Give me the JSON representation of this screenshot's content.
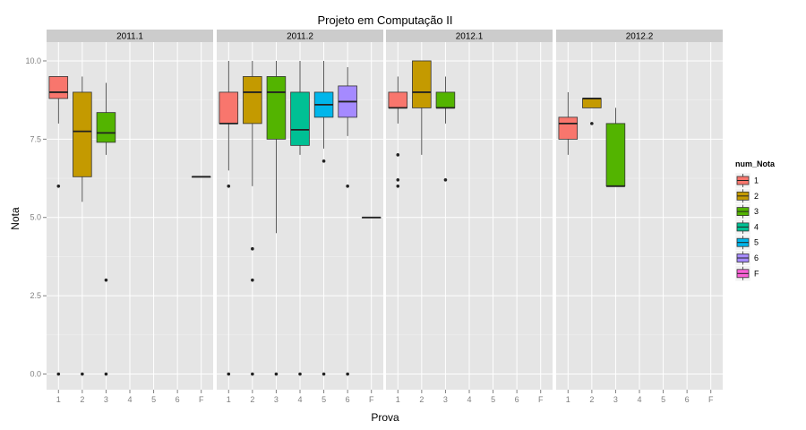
{
  "chart_data": {
    "type": "boxplot",
    "title": "Projeto em Computação II",
    "xlabel": "Prova",
    "ylabel": "Nota",
    "ylim": [
      -0.5,
      10.6
    ],
    "yticks": [
      0.0,
      2.5,
      5.0,
      7.5,
      10.0
    ],
    "ytick_labels": [
      "0.0",
      "2.5",
      "5.0",
      "7.5",
      "10.0"
    ],
    "categories": [
      "1",
      "2",
      "3",
      "4",
      "5",
      "6",
      "F"
    ],
    "grid": true,
    "legend": {
      "title": "num_Nota",
      "position": "right",
      "entries": [
        {
          "label": "1",
          "color": "#F8766D"
        },
        {
          "label": "2",
          "color": "#C49A00"
        },
        {
          "label": "3",
          "color": "#53B400"
        },
        {
          "label": "4",
          "color": "#00C094"
        },
        {
          "label": "5",
          "color": "#00B6EB"
        },
        {
          "label": "6",
          "color": "#A58AFF"
        },
        {
          "label": "F",
          "color": "#FB61D7"
        }
      ]
    },
    "panels": [
      {
        "label": "2011.1",
        "boxes": [
          {
            "cat": "1",
            "whisker_low": 8.0,
            "q1": 8.8,
            "median": 9.0,
            "q3": 9.5,
            "whisker_high": 9.5,
            "outliers": [
              6.0,
              0.0
            ]
          },
          {
            "cat": "2",
            "whisker_low": 5.5,
            "q1": 6.3,
            "median": 7.75,
            "q3": 9.0,
            "whisker_high": 9.5,
            "outliers": [
              0.0
            ]
          },
          {
            "cat": "3",
            "whisker_low": 7.0,
            "q1": 7.4,
            "median": 7.7,
            "q3": 8.35,
            "whisker_high": 9.3,
            "outliers": [
              3.0,
              0.0
            ]
          },
          {
            "cat": "F",
            "whisker_low": 6.3,
            "q1": 6.3,
            "median": 6.3,
            "q3": 6.3,
            "whisker_high": 6.3,
            "outliers": []
          }
        ]
      },
      {
        "label": "2011.2",
        "boxes": [
          {
            "cat": "1",
            "whisker_low": 6.5,
            "q1": 8.0,
            "median": 8.0,
            "q3": 9.0,
            "whisker_high": 10.0,
            "outliers": [
              6.0,
              0.0
            ]
          },
          {
            "cat": "2",
            "whisker_low": 6.0,
            "q1": 8.0,
            "median": 9.0,
            "q3": 9.5,
            "whisker_high": 10.0,
            "outliers": [
              4.0,
              3.0,
              0.0
            ]
          },
          {
            "cat": "3",
            "whisker_low": 4.5,
            "q1": 7.5,
            "median": 9.0,
            "q3": 9.5,
            "whisker_high": 10.0,
            "outliers": [
              0.0
            ]
          },
          {
            "cat": "4",
            "whisker_low": 7.0,
            "q1": 7.3,
            "median": 7.8,
            "q3": 9.0,
            "whisker_high": 10.0,
            "outliers": [
              0.0
            ]
          },
          {
            "cat": "5",
            "whisker_low": 7.2,
            "q1": 8.2,
            "median": 8.6,
            "q3": 9.0,
            "whisker_high": 10.0,
            "outliers": [
              6.8,
              0.0
            ]
          },
          {
            "cat": "6",
            "whisker_low": 7.6,
            "q1": 8.2,
            "median": 8.7,
            "q3": 9.2,
            "whisker_high": 9.8,
            "outliers": [
              6.0,
              0.0
            ]
          },
          {
            "cat": "F",
            "whisker_low": 5.0,
            "q1": 5.0,
            "median": 5.0,
            "q3": 5.0,
            "whisker_high": 5.0,
            "outliers": []
          }
        ]
      },
      {
        "label": "2012.1",
        "boxes": [
          {
            "cat": "1",
            "whisker_low": 8.0,
            "q1": 8.5,
            "median": 8.5,
            "q3": 9.0,
            "whisker_high": 9.5,
            "outliers": [
              7.0,
              6.2,
              6.0
            ]
          },
          {
            "cat": "2",
            "whisker_low": 7.0,
            "q1": 8.5,
            "median": 9.0,
            "q3": 10.0,
            "whisker_high": 10.0,
            "outliers": []
          },
          {
            "cat": "3",
            "whisker_low": 8.0,
            "q1": 8.5,
            "median": 8.5,
            "q3": 9.0,
            "whisker_high": 9.5,
            "outliers": [
              6.2
            ]
          }
        ]
      },
      {
        "label": "2012.2",
        "boxes": [
          {
            "cat": "1",
            "whisker_low": 7.0,
            "q1": 7.5,
            "median": 8.0,
            "q3": 8.2,
            "whisker_high": 9.0,
            "outliers": []
          },
          {
            "cat": "2",
            "whisker_low": 8.5,
            "q1": 8.5,
            "median": 8.8,
            "q3": 8.8,
            "whisker_high": 8.8,
            "outliers": [
              8.0
            ]
          },
          {
            "cat": "3",
            "whisker_low": 6.0,
            "q1": 6.0,
            "median": 6.0,
            "q3": 8.0,
            "whisker_high": 8.5,
            "outliers": []
          }
        ]
      }
    ]
  }
}
